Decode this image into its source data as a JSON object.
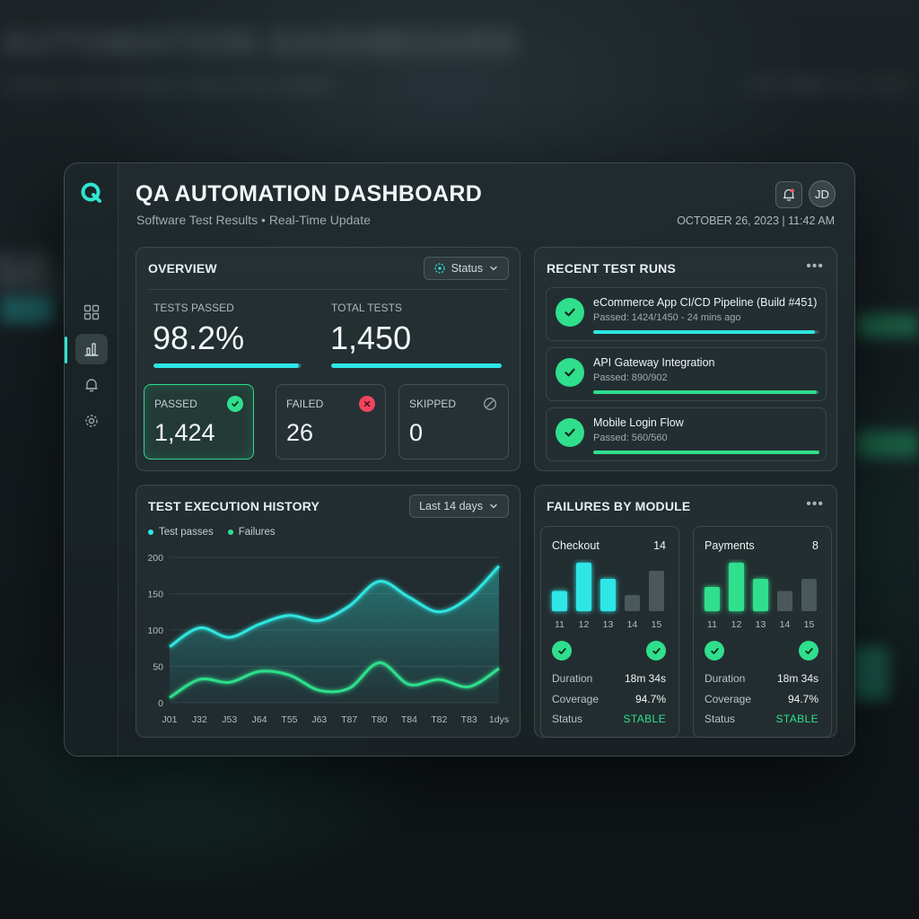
{
  "background": {
    "title": "AUTOMATION DASHBOARD",
    "subtitle": "Software Test Results • Real-Time Update",
    "right": "OCTOBER 26, 2023",
    "big": "98.2%"
  },
  "header": {
    "title": "QA AUTOMATION DASHBOARD",
    "subtitle": "Software Test Results • Real-Time Update",
    "datetime": "OCTOBER 26, 2023 | 11:42 AM",
    "avatar_initials": "JD"
  },
  "sidebar": {
    "items": [
      {
        "icon": "grid-icon"
      },
      {
        "icon": "bar-chart-icon",
        "active": true
      },
      {
        "icon": "bell-icon"
      },
      {
        "icon": "gear-icon"
      }
    ]
  },
  "overview": {
    "title": "OVERVIEW",
    "filter_label": "Status",
    "tests_passed_label": "TESTS PASSED",
    "tests_passed_value": "98.2%",
    "tests_passed_progress": 0.982,
    "total_tests_label": "TOTAL TESTS",
    "total_tests_value": "1,450",
    "total_tests_progress": 1.0,
    "passed_label": "PASSED",
    "passed_value": "1,424",
    "failed_label": "FAILED",
    "failed_value": "26",
    "skipped_label": "SKIPPED",
    "skipped_value": "0"
  },
  "recent_runs": {
    "title": "RECENT TEST RUNS",
    "runs": [
      {
        "title": "eCommerce App CI/CD Pipeline (Build #451)",
        "subtitle": "Passed: 1424/1450 - 24 mins ago",
        "progress": 0.982,
        "color": "#2ee6e0"
      },
      {
        "title": "API Gateway Integration",
        "subtitle": "Passed: 890/902",
        "progress": 0.987,
        "color": "#2fdf8c"
      },
      {
        "title": "Mobile Login Flow",
        "subtitle": "Passed: 560/560",
        "progress": 1.0,
        "color": "#2fdf8c"
      }
    ]
  },
  "history": {
    "title": "TEST EXECUTION HISTORY",
    "range_label": "Last 14 days",
    "legend_passes": "Test passes",
    "legend_failures": "Failures"
  },
  "chart_data": {
    "type": "area",
    "categories": [
      "J01",
      "J32",
      "J53",
      "J64",
      "T55",
      "J63",
      "T87",
      "T80",
      "T84",
      "T82",
      "T83",
      "1dys"
    ],
    "series": [
      {
        "name": "Test passes",
        "values": [
          77,
          103,
          90,
          108,
          120,
          113,
          133,
          167,
          145,
          125,
          145,
          188
        ],
        "color": "#2ee6e0"
      },
      {
        "name": "Failures",
        "values": [
          7,
          32,
          28,
          43,
          38,
          17,
          20,
          55,
          25,
          32,
          22,
          47
        ],
        "color": "#2fdf8c"
      }
    ],
    "yticks": [
      "0",
      "50",
      "100",
      "150",
      "200"
    ],
    "ylim": [
      0,
      200
    ],
    "grid": true
  },
  "failures": {
    "title": "FAILURES BY MODULE",
    "modules": [
      {
        "name": "Checkout",
        "count": "14",
        "bar_color": "#2ee6e6",
        "bars": [
          {
            "label": "11",
            "value": 5
          },
          {
            "label": "12",
            "value": 12
          },
          {
            "label": "13",
            "value": 8
          },
          {
            "label": "14",
            "value": 4
          },
          {
            "label": "15",
            "value": 10
          }
        ],
        "duration_label": "Duration",
        "duration": "18m 34s",
        "coverage_label": "Coverage",
        "coverage": "94.7%",
        "status_label": "Status",
        "status": "STABLE"
      },
      {
        "name": "Payments",
        "count": "8",
        "bar_color": "#2fdf8c",
        "bars": [
          {
            "label": "11",
            "value": 6
          },
          {
            "label": "12",
            "value": 12
          },
          {
            "label": "13",
            "value": 8
          },
          {
            "label": "14",
            "value": 5
          },
          {
            "label": "15",
            "value": 8
          }
        ],
        "duration_label": "Duration",
        "duration": "18m 34s",
        "coverage_label": "Coverage",
        "coverage": "94.7%",
        "status_label": "Status",
        "status": "STABLE"
      }
    ]
  }
}
